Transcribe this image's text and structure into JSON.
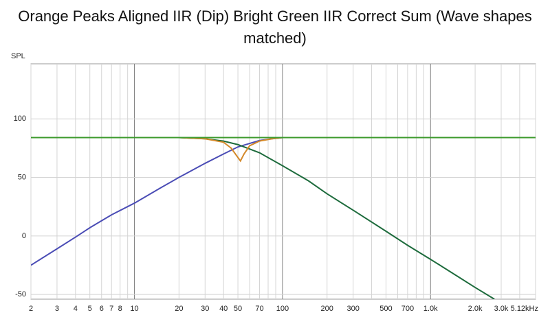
{
  "chart_data": {
    "type": "line",
    "title": "Orange Peaks Aligned IIR (Dip) Bright Green IIR Correct Sum (Wave shapes matched)",
    "y_label": "SPL",
    "xscale": "log",
    "xlim": [
      2,
      5120
    ],
    "xticks": [
      2,
      3,
      4,
      5,
      6,
      7,
      8,
      10,
      20,
      30,
      40,
      50,
      70,
      100,
      200,
      300,
      500,
      700,
      {
        "value": 1000,
        "label": "1.0k"
      },
      {
        "value": 2000,
        "label": "2.0k"
      },
      {
        "value": 3000,
        "label": "3.0k"
      },
      {
        "value": 5120,
        "label": "5.12kHz"
      }
    ],
    "minor_xticks": [
      9,
      60,
      80,
      90,
      400,
      600,
      800,
      900,
      4000
    ],
    "major_xticks": [
      10,
      100,
      1000
    ],
    "ylim": [
      -54,
      147
    ],
    "yticks": [
      -50,
      0,
      50,
      100
    ],
    "grid": true,
    "series": [
      {
        "color": "#4a4cb5",
        "x": [
          2,
          3,
          4,
          5,
          7,
          10,
          15,
          20,
          30,
          40,
          50,
          60,
          70,
          85,
          100,
          150,
          5120
        ],
        "values": [
          -25,
          -11,
          -1,
          7,
          18,
          28,
          41,
          50,
          62,
          70,
          76,
          79,
          81.5,
          83,
          84,
          84,
          84
        ]
      },
      {
        "color": "#1d6b3c",
        "x": [
          2,
          20,
          30,
          40,
          50,
          70,
          100,
          150,
          200,
          300,
          500,
          700,
          1000,
          1500,
          2000,
          2700
        ],
        "values": [
          84,
          84,
          83,
          81,
          78,
          71,
          60,
          47,
          36,
          22,
          4,
          -8,
          -20,
          -34,
          -44,
          -54
        ]
      },
      {
        "color": "#d4892a",
        "x": [
          2,
          20,
          30,
          40,
          45,
          50,
          52,
          55,
          60,
          70,
          85,
          100,
          5120
        ],
        "values": [
          84,
          84,
          83,
          80,
          75,
          67,
          64,
          70,
          77,
          81,
          83,
          84,
          84
        ]
      },
      {
        "color": "#3c9a2c",
        "x": [
          2,
          5120
        ],
        "values": [
          84,
          84
        ]
      }
    ]
  }
}
